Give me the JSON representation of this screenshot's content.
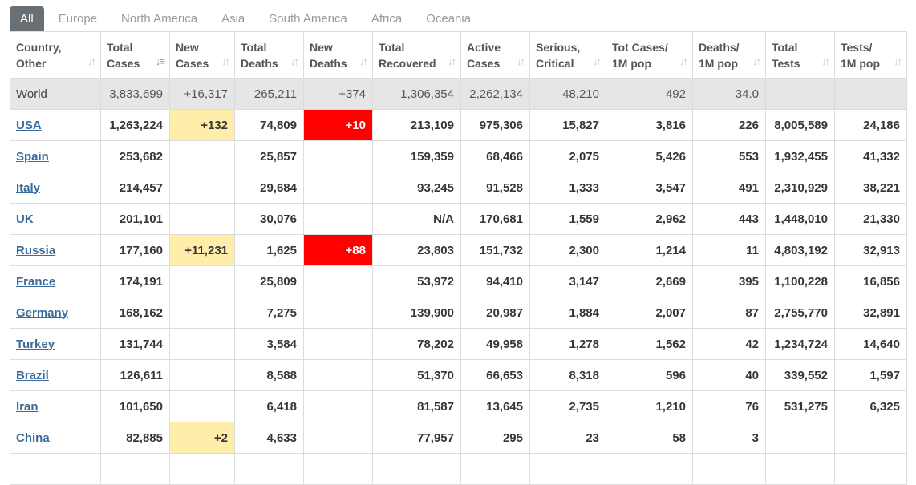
{
  "tabs": [
    {
      "label": "All",
      "active": true
    },
    {
      "label": "Europe",
      "active": false
    },
    {
      "label": "North America",
      "active": false
    },
    {
      "label": "Asia",
      "active": false
    },
    {
      "label": "South America",
      "active": false
    },
    {
      "label": "Africa",
      "active": false
    },
    {
      "label": "Oceania",
      "active": false
    }
  ],
  "columns": [
    [
      "Country,",
      "Other"
    ],
    [
      "Total",
      "Cases"
    ],
    [
      "New",
      "Cases"
    ],
    [
      "Total",
      "Deaths"
    ],
    [
      "New",
      "Deaths"
    ],
    [
      "Total",
      "Recovered"
    ],
    [
      "Active",
      "Cases"
    ],
    [
      "Serious,",
      "Critical"
    ],
    [
      "Tot Cases/",
      "1M pop"
    ],
    [
      "Deaths/",
      "1M pop"
    ],
    [
      "Total",
      "Tests"
    ],
    [
      "Tests/",
      "1M pop"
    ]
  ],
  "sort_icon": "sort-arrows-icon",
  "active_sort_icon": "sort-descending-icon",
  "colors": {
    "yellow_highlight": "#ffeeaa",
    "red_highlight": "#ff0000",
    "link": "#3a6c9e",
    "world_row": "#e6e6e6"
  },
  "world": [
    "World",
    "3,833,699",
    "+16,317",
    "265,211",
    "+374",
    "1,306,354",
    "2,262,134",
    "48,210",
    "492",
    "34.0",
    "",
    ""
  ],
  "rows": [
    {
      "cells": [
        "USA",
        "1,263,224",
        "+132",
        "74,809",
        "+10",
        "213,109",
        "975,306",
        "15,827",
        "3,816",
        "226",
        "8,005,589",
        "24,186"
      ]
    },
    {
      "cells": [
        "Spain",
        "253,682",
        "",
        "25,857",
        "",
        "159,359",
        "68,466",
        "2,075",
        "5,426",
        "553",
        "1,932,455",
        "41,332"
      ]
    },
    {
      "cells": [
        "Italy",
        "214,457",
        "",
        "29,684",
        "",
        "93,245",
        "91,528",
        "1,333",
        "3,547",
        "491",
        "2,310,929",
        "38,221"
      ]
    },
    {
      "cells": [
        "UK",
        "201,101",
        "",
        "30,076",
        "",
        "N/A",
        "170,681",
        "1,559",
        "2,962",
        "443",
        "1,448,010",
        "21,330"
      ]
    },
    {
      "cells": [
        "Russia",
        "177,160",
        "+11,231",
        "1,625",
        "+88",
        "23,803",
        "151,732",
        "2,300",
        "1,214",
        "11",
        "4,803,192",
        "32,913"
      ]
    },
    {
      "cells": [
        "France",
        "174,191",
        "",
        "25,809",
        "",
        "53,972",
        "94,410",
        "3,147",
        "2,669",
        "395",
        "1,100,228",
        "16,856"
      ]
    },
    {
      "cells": [
        "Germany",
        "168,162",
        "",
        "7,275",
        "",
        "139,900",
        "20,987",
        "1,884",
        "2,007",
        "87",
        "2,755,770",
        "32,891"
      ]
    },
    {
      "cells": [
        "Turkey",
        "131,744",
        "",
        "3,584",
        "",
        "78,202",
        "49,958",
        "1,278",
        "1,562",
        "42",
        "1,234,724",
        "14,640"
      ]
    },
    {
      "cells": [
        "Brazil",
        "126,611",
        "",
        "8,588",
        "",
        "51,370",
        "66,653",
        "8,318",
        "596",
        "40",
        "339,552",
        "1,597"
      ]
    },
    {
      "cells": [
        "Iran",
        "101,650",
        "",
        "6,418",
        "",
        "81,587",
        "13,645",
        "2,735",
        "1,210",
        "76",
        "531,275",
        "6,325"
      ]
    },
    {
      "cells": [
        "China",
        "82,885",
        "+2",
        "4,633",
        "",
        "77,957",
        "295",
        "23",
        "58",
        "3",
        "",
        ""
      ]
    },
    {
      "cells": [
        "",
        "",
        "",
        "",
        "",
        "",
        "",
        "",
        "",
        "",
        "",
        ""
      ]
    }
  ]
}
